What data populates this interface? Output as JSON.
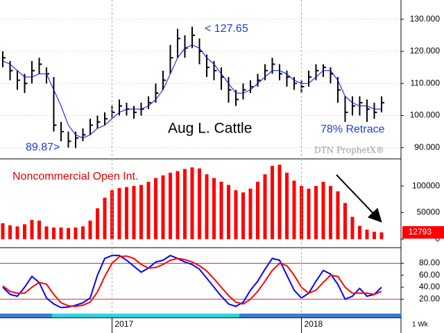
{
  "chart_data": [
    {
      "type": "ohlc",
      "title": "Aug L. Cattle",
      "watermark": "DTN ProphetX®",
      "annotations": [
        "< 127.65",
        "89.87>",
        "78% Retrace"
      ],
      "high": [
        120,
        117,
        114,
        113,
        117,
        118,
        115,
        112,
        98,
        95,
        95,
        96,
        99,
        100,
        101,
        103,
        105,
        104,
        103,
        104,
        106,
        110,
        114,
        122,
        127,
        125,
        127.65,
        124,
        119,
        117,
        115,
        112,
        108,
        110,
        111,
        113,
        116,
        118,
        116,
        114,
        112,
        111,
        114,
        116,
        116,
        115,
        112,
        106,
        106,
        106,
        105,
        104,
        106
      ],
      "low": [
        115,
        111,
        108,
        107,
        110,
        113,
        110,
        95,
        92,
        90,
        89.87,
        92,
        94,
        96,
        97,
        99,
        100,
        100,
        99,
        100,
        102,
        104,
        108,
        113,
        118,
        118,
        121,
        116,
        112,
        111,
        108,
        104,
        103,
        105,
        107,
        109,
        111,
        113,
        111,
        109,
        108,
        107,
        109,
        111,
        112,
        110,
        104,
        98,
        100,
        100,
        98,
        99,
        101
      ],
      "close": [
        118,
        114,
        111,
        110,
        114,
        116,
        113,
        97,
        95,
        92,
        93,
        94,
        97,
        98,
        99,
        101,
        103,
        102,
        101,
        102,
        104,
        107,
        111,
        118,
        124,
        121,
        125,
        120,
        115,
        114,
        112,
        108,
        105,
        108,
        109,
        111,
        114,
        116,
        113,
        112,
        110,
        109,
        112,
        114,
        115,
        113,
        108,
        101,
        103,
        104,
        102,
        101,
        104
      ],
      "color": "#000000",
      "average": {
        "color": "#0000ff",
        "values": [
          117,
          116,
          114,
          112,
          112,
          113,
          113,
          108,
          103,
          97,
          94,
          93,
          94,
          96,
          97,
          99,
          101,
          102,
          102,
          102,
          103,
          105,
          108,
          113,
          118,
          121,
          122,
          121,
          118,
          116,
          113,
          110,
          107,
          107,
          108,
          110,
          112,
          114,
          114,
          113,
          111,
          110,
          110,
          112,
          114,
          114,
          111,
          106,
          104,
          103,
          103,
          102,
          102
        ]
      },
      "xlim": [
        -0.38,
        54.67
      ],
      "ylim": [
        86.5,
        136
      ],
      "yticks": [
        {
          "value": 90,
          "label": "90.000"
        },
        {
          "value": 100,
          "label": "100.000"
        },
        {
          "value": 110,
          "label": "110.000"
        },
        {
          "value": 120,
          "label": "120.000"
        },
        {
          "value": 130,
          "label": "130.000"
        }
      ]
    },
    {
      "type": "bar",
      "title": "Noncommercial Open Int.",
      "color": "#ff0000",
      "values": [
        30000,
        26000,
        24000,
        28000,
        36000,
        35000,
        24000,
        22000,
        22000,
        21000,
        22000,
        24000,
        35000,
        58000,
        78000,
        92000,
        96000,
        98000,
        100000,
        102000,
        108000,
        115000,
        120000,
        125000,
        128000,
        132000,
        135000,
        133000,
        122000,
        115000,
        108000,
        102000,
        92000,
        88000,
        95000,
        108000,
        122000,
        138000,
        140000,
        125000,
        110000,
        100000,
        95000,
        100000,
        108000,
        100000,
        90000,
        68000,
        42000,
        25000,
        18000,
        14000,
        12793
      ],
      "xlim": [
        -0.38,
        54.67
      ],
      "ylim": [
        -16000,
        151000
      ],
      "yticks": [
        0,
        50000,
        100000
      ]
    },
    {
      "type": "line",
      "interval": "1 Wk",
      "series": [
        {
          "color": "#0000ff",
          "values": [
            40,
            28,
            25,
            40,
            58,
            48,
            22,
            12,
            6,
            7,
            10,
            14,
            22,
            60,
            88,
            93,
            93,
            85,
            75,
            65,
            72,
            82,
            85,
            93,
            88,
            82,
            78,
            70,
            55,
            40,
            25,
            12,
            8,
            15,
            35,
            50,
            70,
            88,
            85,
            60,
            35,
            22,
            30,
            50,
            68,
            62,
            45,
            20,
            25,
            38,
            25,
            28,
            40
          ]
        },
        {
          "color": "#ff0000",
          "values": [
            42,
            33,
            30,
            30,
            40,
            48,
            45,
            28,
            14,
            9,
            8,
            10,
            15,
            32,
            58,
            80,
            91,
            92,
            88,
            78,
            72,
            73,
            78,
            85,
            88,
            86,
            82,
            76,
            67,
            54,
            40,
            26,
            15,
            12,
            20,
            33,
            50,
            68,
            80,
            76,
            60,
            40,
            30,
            35,
            48,
            60,
            58,
            40,
            30,
            30,
            30,
            28,
            33
          ]
        }
      ],
      "reference_lines": [
        20,
        80
      ],
      "xlim": [
        -0.38,
        54.67
      ],
      "ylim": [
        -4,
        106
      ],
      "xticks": [
        {
          "value": 15,
          "label": "2017"
        },
        {
          "value": 41,
          "label": "2018"
        }
      ],
      "yticks": [
        {
          "value": 20,
          "label": "20.00"
        },
        {
          "value": 40,
          "label": "40.00"
        },
        {
          "value": 60,
          "label": "60.00"
        },
        {
          "value": 80,
          "label": "80.00"
        }
      ]
    }
  ]
}
